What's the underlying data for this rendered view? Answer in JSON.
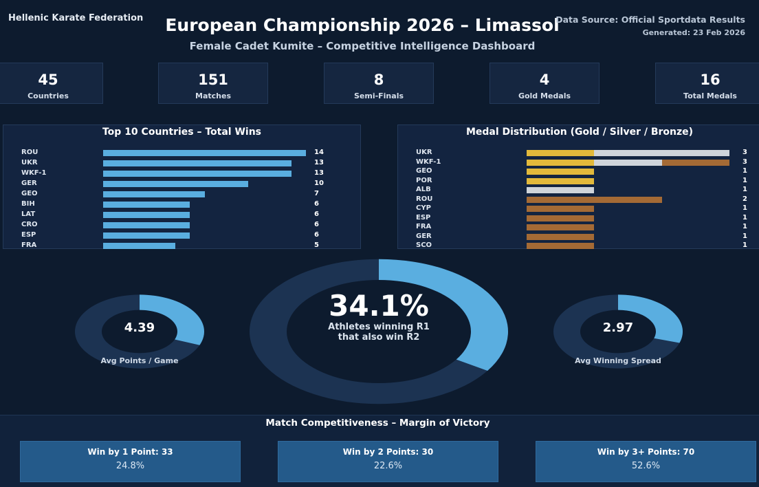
{
  "header": {
    "org": "Hellenic Karate Federation",
    "title": "European Championship 2026 – Limassol",
    "subtitle": "Female Cadet Kumite – Competitive Intelligence Dashboard",
    "source": "Data Source: Official Sportdata Results",
    "generated": "Generated: 23 Feb 2026"
  },
  "kpis": [
    {
      "value": "45",
      "label": "Countries"
    },
    {
      "value": "151",
      "label": "Matches"
    },
    {
      "value": "8",
      "label": "Semi-Finals"
    },
    {
      "value": "4",
      "label": "Gold Medals"
    },
    {
      "value": "16",
      "label": "Total Medals"
    }
  ],
  "chart_data": [
    {
      "type": "bar",
      "orientation": "horizontal",
      "title": "Top 10 Countries – Total Wins",
      "categories": [
        "ROU",
        "UKR",
        "WKF-1",
        "GER",
        "GEO",
        "BIH",
        "LAT",
        "CRO",
        "ESP",
        "FRA"
      ],
      "values": [
        14,
        13,
        13,
        10,
        7,
        6,
        6,
        6,
        6,
        5
      ],
      "color": "#5aaee0"
    },
    {
      "type": "bar",
      "orientation": "horizontal",
      "stacked": true,
      "title": "Medal Distribution (Gold / Silver / Bronze)",
      "categories": [
        "UKR",
        "WKF-1",
        "GEO",
        "POR",
        "ALB",
        "ROU",
        "CYP",
        "ESP",
        "FRA",
        "GER",
        "SCO"
      ],
      "series": [
        {
          "values": [
            1,
            1,
            1,
            1,
            0,
            0,
            0,
            0,
            0,
            0,
            0
          ],
          "color": "#e2b93b"
        },
        {
          "values": [
            2,
            1,
            0,
            0,
            1,
            0,
            0,
            0,
            0,
            0,
            0
          ],
          "color": "#cfd4da"
        },
        {
          "values": [
            0,
            1,
            0,
            0,
            0,
            2,
            1,
            1,
            1,
            1,
            1
          ],
          "color": "#a46a35"
        }
      ],
      "totals": [
        3,
        3,
        1,
        1,
        1,
        2,
        1,
        1,
        1,
        1,
        1
      ]
    },
    {
      "type": "pie",
      "variant": "donut",
      "value_text": "4.39",
      "label": "Avg Points / Game",
      "fraction": 0.31,
      "colors": {
        "fill": "#5aaee0",
        "track": "#1c3352"
      }
    },
    {
      "type": "pie",
      "variant": "donut",
      "value_text": "34.1%",
      "label_line1": "Athletes winning R1",
      "label_line2": "that also win R2",
      "fraction": 0.341,
      "colors": {
        "fill": "#5aaee0",
        "track": "#1c3352"
      }
    },
    {
      "type": "pie",
      "variant": "donut",
      "value_text": "2.97",
      "label": "Avg Winning Spread",
      "fraction": 0.3,
      "colors": {
        "fill": "#5aaee0",
        "track": "#1c3352"
      }
    }
  ],
  "competitiveness": {
    "title": "Match Competitiveness – Margin of Victory",
    "cards": [
      {
        "title": "Win by 1 Point: 33",
        "percent": "24.8%"
      },
      {
        "title": "Win by 2 Points: 30",
        "percent": "22.6%"
      },
      {
        "title": "Win by 3+ Points: 70",
        "percent": "52.6%"
      }
    ]
  }
}
